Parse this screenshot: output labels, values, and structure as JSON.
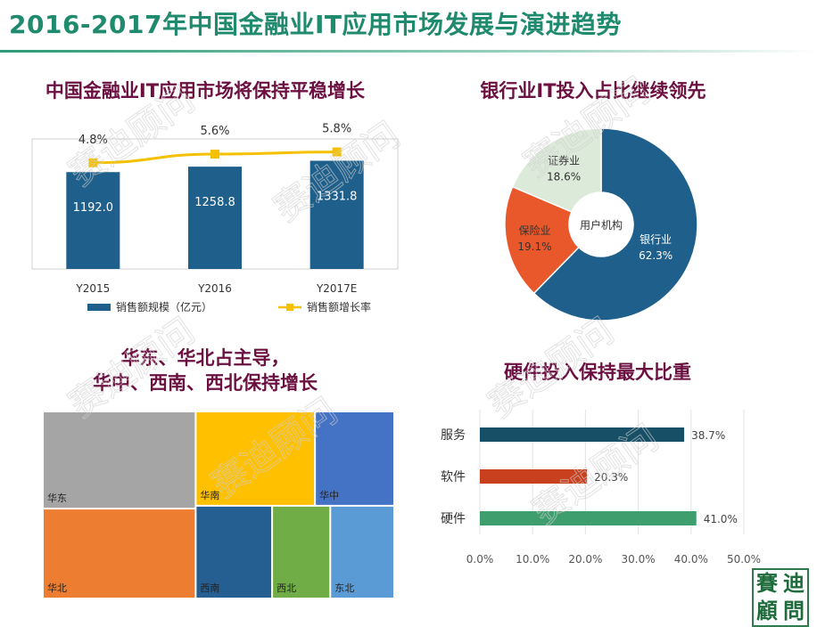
{
  "title": "2016-2017年中国金融业IT应用市场发展与演进趋势",
  "colors": {
    "title": "#1f8a6d",
    "panel_title": "#6b1040",
    "bar": "#1f5f8b",
    "line": "#f5c000",
    "pie_bank": "#1f5f8b",
    "pie_ins": "#e8582a",
    "pie_sec": "#dcebd9",
    "hbar_service": "#164f66",
    "hbar_software": "#c8401e",
    "hbar_hardware": "#3f9e6e"
  },
  "watermark_text": "赛迪顾问",
  "logo_text": [
    "賽",
    "迪",
    "顧",
    "問"
  ],
  "chart_data": [
    {
      "type": "bar",
      "title": "中国金融业IT应用市场将保持平稳增长",
      "categories": [
        "Y2015",
        "Y2016",
        "Y2017E"
      ],
      "series": [
        {
          "name": "销售额规模（亿元）",
          "kind": "bar",
          "values": [
            1192.0,
            1258.8,
            1331.8
          ],
          "labels": [
            "1192.0",
            "1258.8",
            "1331.8"
          ]
        },
        {
          "name": "销售额增长率",
          "kind": "line",
          "values": [
            4.8,
            5.6,
            5.8
          ],
          "labels": [
            "4.8%",
            "5.6%",
            "5.8%"
          ]
        }
      ]
    },
    {
      "type": "pie",
      "title": "银行业IT投入占比继续领先",
      "center_label": "用户机构",
      "slices": [
        {
          "name": "银行业",
          "value": 62.3,
          "label": "62.3%"
        },
        {
          "name": "保险业",
          "value": 19.1,
          "label": "19.1%"
        },
        {
          "name": "证券业",
          "value": 18.6,
          "label": "18.6%"
        }
      ]
    },
    {
      "type": "heatmap",
      "subtype": "treemap",
      "title": [
        "华东、华北占主导，",
        "华中、西南、西北保持增长"
      ],
      "regions": [
        {
          "name": "华东",
          "share": 0.226
        },
        {
          "name": "华北",
          "share": 0.209
        },
        {
          "name": "华南",
          "share": 0.146
        },
        {
          "name": "华中",
          "share": 0.097
        },
        {
          "name": "西南",
          "share": 0.092
        },
        {
          "name": "西北",
          "share": 0.07
        },
        {
          "name": "东北",
          "share": 0.077
        }
      ]
    },
    {
      "type": "bar",
      "orientation": "horizontal",
      "title": "硬件投入保持最大比重",
      "categories": [
        "服务",
        "软件",
        "硬件"
      ],
      "values": [
        38.7,
        20.3,
        41.0
      ],
      "labels": [
        "38.7%",
        "20.3%",
        "41.0%"
      ],
      "xlim": [
        0,
        50
      ],
      "ticks": [
        "0.0%",
        "10.0%",
        "20.0%",
        "30.0%",
        "40.0%",
        "50.0%"
      ]
    }
  ]
}
